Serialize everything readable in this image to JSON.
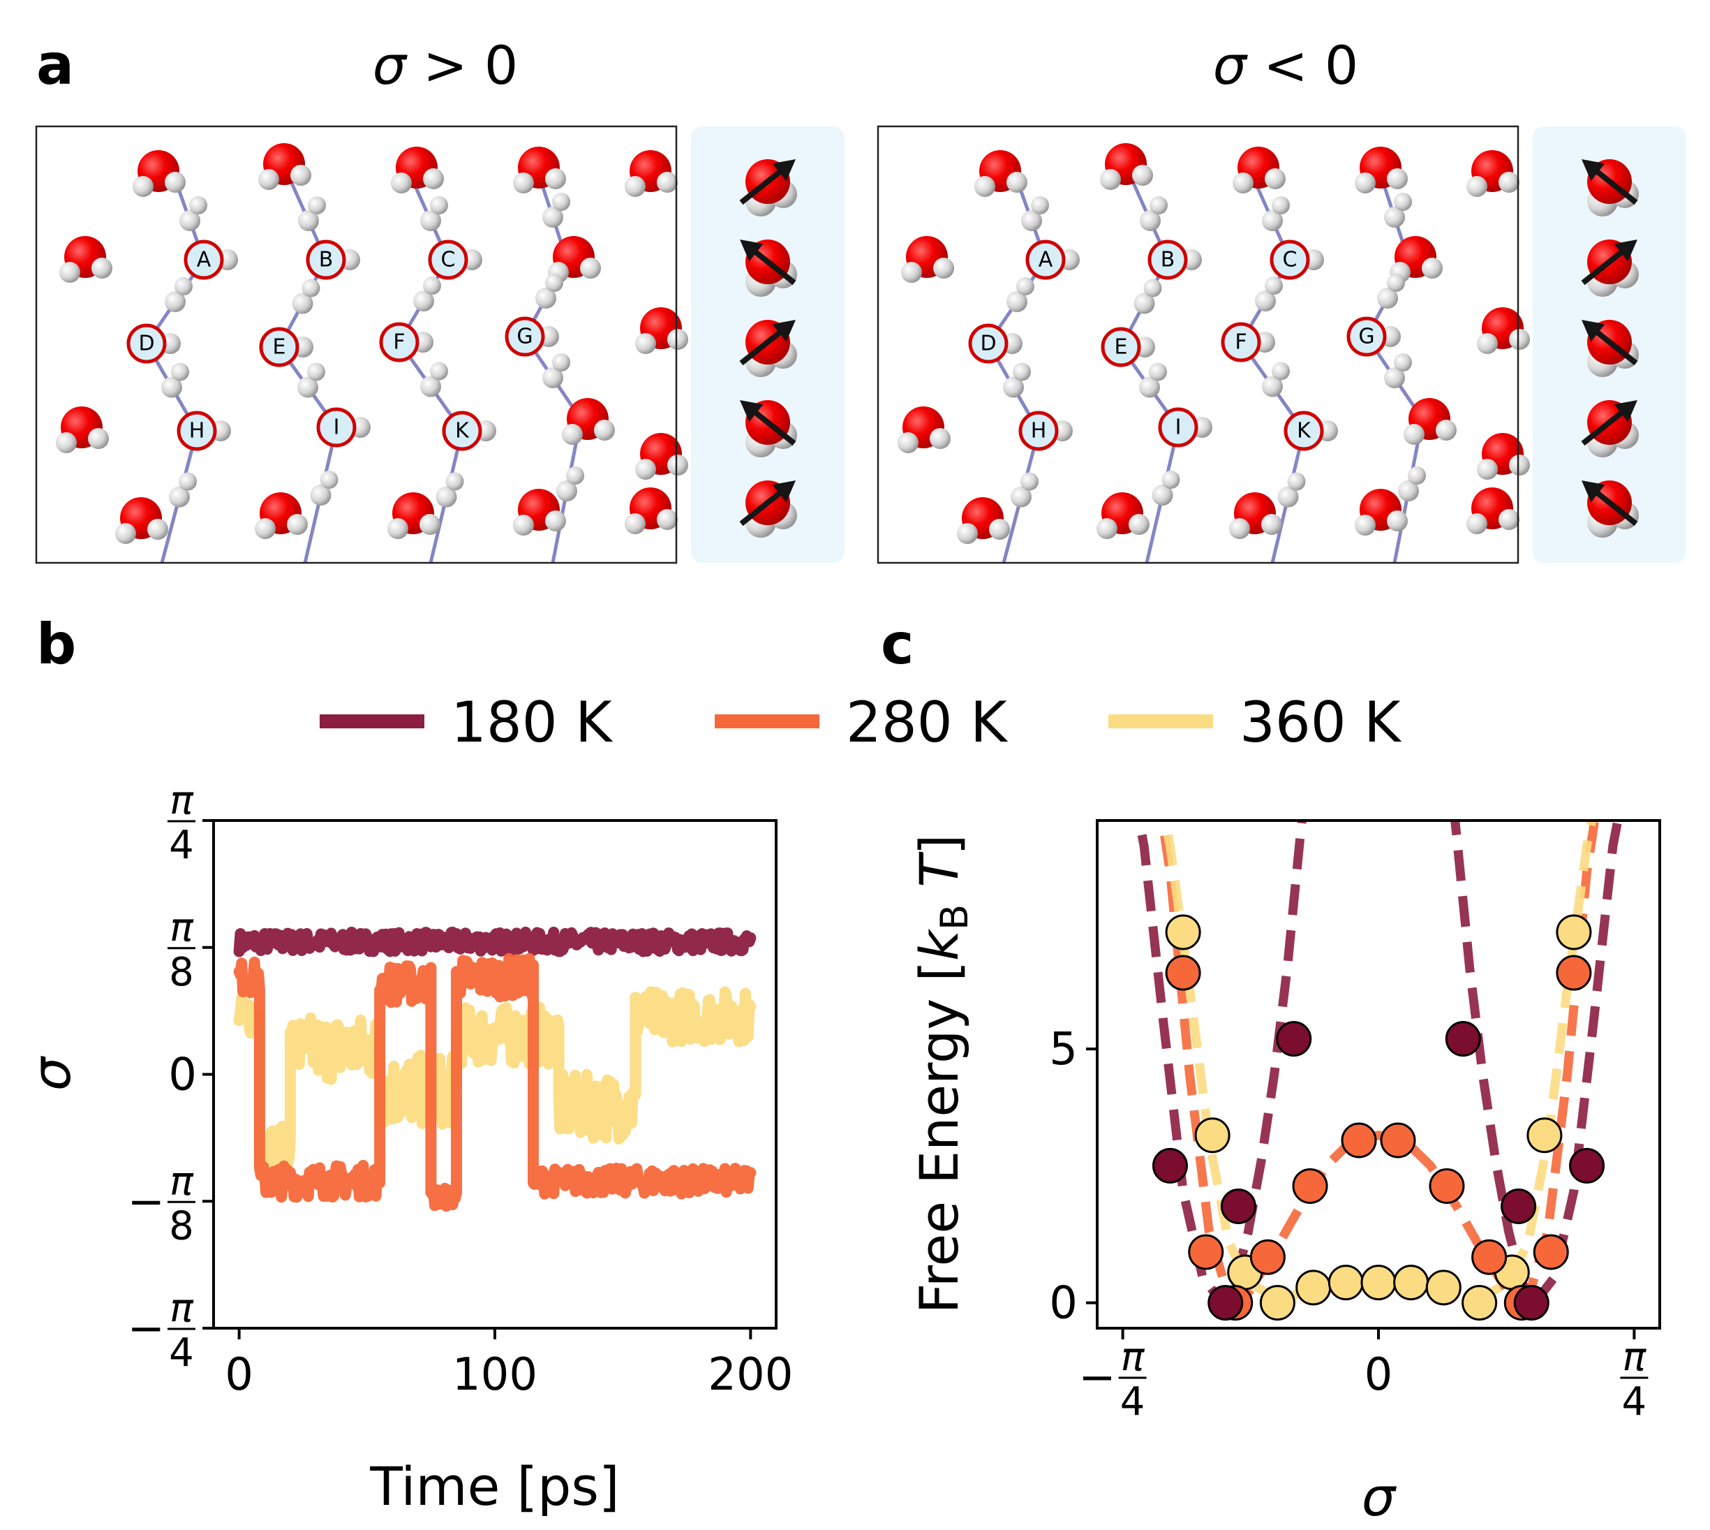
{
  "panels": {
    "a": "a",
    "b": "b",
    "c": "c"
  },
  "panel_a": {
    "left_title": {
      "sym": "σ",
      "rest": " > 0"
    },
    "right_title": {
      "sym": "σ",
      "rest": " < 0"
    },
    "left_atom_labels": [
      "A",
      "B",
      "C",
      "D",
      "E",
      "F",
      "G",
      "H",
      "I",
      "K"
    ],
    "right_atom_labels": [
      "A",
      "B",
      "C",
      "D",
      "E",
      "F",
      "G",
      "H",
      "I",
      "K"
    ],
    "left_arrow_directions": [
      "up-right",
      "up-left",
      "up-right",
      "up-left",
      "up-right"
    ],
    "right_arrow_directions": [
      "up-left",
      "up-right",
      "up-left",
      "up-right",
      "up-left"
    ],
    "colors": {
      "oxygen": "#ee0000",
      "hydrogen": "#d8d8d8",
      "bond": "#8585c4",
      "side_panel": "#ebf7fd",
      "labeled_atom": "#d7eef9"
    }
  },
  "legend": {
    "entries": [
      {
        "label": "180 K",
        "color": "#8c1e41"
      },
      {
        "label": "280 K",
        "color": "#f6683a"
      },
      {
        "label": "360 K",
        "color": "#fcdc82"
      }
    ]
  },
  "chart_data": [
    {
      "type": "line",
      "panel": "b",
      "xlabel": "Time [ps]",
      "ylabel": "σ",
      "xlim": [
        -10,
        210
      ],
      "ylim": [
        -0.7854,
        0.7854
      ],
      "xticks": [
        0,
        100,
        200
      ],
      "xtick_labels": [
        "0",
        "100",
        "200"
      ],
      "yticks": [
        {
          "value": -0.7854,
          "sign": "−",
          "num": "π",
          "den": "4"
        },
        {
          "value": -0.3927,
          "sign": "−",
          "num": "π",
          "den": "8"
        },
        {
          "value": 0,
          "text": "0"
        },
        {
          "value": 0.3927,
          "sign": "",
          "num": "π",
          "den": "8"
        },
        {
          "value": 0.7854,
          "sign": "",
          "num": "π",
          "den": "4"
        }
      ],
      "series": [
        {
          "name": "180 K",
          "color": "#8c1e41",
          "segments": [
            {
              "t0": 0,
              "t1": 200,
              "level": 0.41,
              "spread": 0.06
            }
          ]
        },
        {
          "name": "360 K",
          "color": "#fcdc82",
          "segments": [
            {
              "t0": 0,
              "t1": 8,
              "level": 0.18,
              "spread": 0.12
            },
            {
              "t0": 8,
              "t1": 20,
              "level": -0.22,
              "spread": 0.12
            },
            {
              "t0": 20,
              "t1": 55,
              "level": 0.08,
              "spread": 0.2
            },
            {
              "t0": 55,
              "t1": 85,
              "level": -0.05,
              "spread": 0.22
            },
            {
              "t0": 85,
              "t1": 125,
              "level": 0.12,
              "spread": 0.18
            },
            {
              "t0": 125,
              "t1": 155,
              "level": -0.1,
              "spread": 0.2
            },
            {
              "t0": 155,
              "t1": 200,
              "level": 0.18,
              "spread": 0.16
            }
          ]
        },
        {
          "name": "280 K",
          "color": "#f6683a",
          "segments": [
            {
              "t0": 0,
              "t1": 8,
              "level": 0.3,
              "spread": 0.1
            },
            {
              "t0": 8,
              "t1": 55,
              "level": -0.33,
              "spread": 0.1
            },
            {
              "t0": 55,
              "t1": 75,
              "level": 0.28,
              "spread": 0.12
            },
            {
              "t0": 75,
              "t1": 85,
              "level": -0.38,
              "spread": 0.06
            },
            {
              "t0": 85,
              "t1": 115,
              "level": 0.3,
              "spread": 0.12
            },
            {
              "t0": 115,
              "t1": 200,
              "level": -0.33,
              "spread": 0.08
            }
          ]
        }
      ]
    },
    {
      "type": "line",
      "panel": "c",
      "xlabel": "σ",
      "ylabel": "Free Energy [k_B T]",
      "xlim": [
        -0.8639,
        0.8639
      ],
      "ylim": [
        -0.5,
        9.5
      ],
      "xticks": [
        {
          "value": -0.7854,
          "sign": "−",
          "num": "π",
          "den": "4"
        },
        {
          "value": 0,
          "text": "0"
        },
        {
          "value": 0.7854,
          "sign": "",
          "num": "π",
          "den": "4"
        }
      ],
      "yticks": [
        0,
        5
      ],
      "series": [
        {
          "name": "180 K",
          "color": "#8c1e41",
          "marker_color": "#7b0d2e",
          "x": [
            -0.64,
            -0.47,
            -0.43,
            -0.26,
            0.26,
            0.43,
            0.47,
            0.64
          ],
          "y": [
            2.7,
            0.0,
            1.9,
            5.2,
            5.2,
            1.9,
            0.0,
            2.7
          ],
          "fit_x": [
            -0.78,
            -0.72,
            -0.66,
            -0.6,
            -0.54,
            -0.48,
            -0.44,
            -0.4,
            -0.36,
            -0.32,
            -0.28,
            -0.24,
            -0.21,
            0.21,
            0.24,
            0.28,
            0.32,
            0.36,
            0.4,
            0.44,
            0.48,
            0.54,
            0.6,
            0.66,
            0.72,
            0.78
          ],
          "fit_y": [
            11,
            9,
            5.5,
            2.2,
            0.5,
            0.0,
            0.4,
            1.4,
            2.8,
            4.5,
            6.6,
            9.2,
            11,
            11,
            9.2,
            6.6,
            4.5,
            2.8,
            1.4,
            0.4,
            0.0,
            0.5,
            2.2,
            5.5,
            9,
            11
          ]
        },
        {
          "name": "280 K",
          "color": "#f6683a",
          "marker_color": "#f6683a",
          "x": [
            -0.6,
            -0.53,
            -0.44,
            -0.34,
            -0.21,
            -0.06,
            0.06,
            0.21,
            0.34,
            0.44,
            0.53,
            0.6
          ],
          "y": [
            6.5,
            1.0,
            0.0,
            0.9,
            2.3,
            3.2,
            3.2,
            2.3,
            0.9,
            0.0,
            1.0,
            6.5
          ],
          "fit_x": [
            -0.7,
            -0.64,
            -0.58,
            -0.52,
            -0.46,
            -0.4,
            -0.32,
            -0.24,
            -0.16,
            -0.08,
            0.0,
            0.08,
            0.16,
            0.24,
            0.32,
            0.4,
            0.46,
            0.52,
            0.58,
            0.64,
            0.7
          ],
          "fit_y": [
            11,
            8.5,
            4.5,
            1.4,
            0.1,
            0.2,
            1.0,
            1.9,
            2.7,
            3.2,
            3.3,
            3.2,
            2.7,
            1.9,
            1.0,
            0.2,
            0.1,
            1.4,
            4.5,
            8.5,
            11
          ]
        },
        {
          "name": "360 K",
          "color": "#fcdc82",
          "marker_color": "#fcdc82",
          "x": [
            -0.6,
            -0.51,
            -0.41,
            -0.31,
            -0.2,
            -0.1,
            0.0,
            0.1,
            0.2,
            0.31,
            0.41,
            0.51,
            0.6
          ],
          "y": [
            7.3,
            3.3,
            0.6,
            0.0,
            0.3,
            0.4,
            0.4,
            0.4,
            0.3,
            0.0,
            0.6,
            3.3,
            7.3
          ],
          "fit_x": [
            -0.7,
            -0.64,
            -0.58,
            -0.52,
            -0.46,
            -0.4,
            -0.3,
            -0.2,
            -0.1,
            0.0,
            0.1,
            0.2,
            0.3,
            0.4,
            0.46,
            0.52,
            0.58,
            0.64,
            0.7
          ],
          "fit_y": [
            11,
            9,
            6.2,
            3.2,
            1.2,
            0.4,
            0.05,
            0.3,
            0.4,
            0.4,
            0.4,
            0.3,
            0.05,
            0.4,
            1.2,
            3.2,
            6.2,
            9,
            11
          ]
        }
      ]
    }
  ]
}
